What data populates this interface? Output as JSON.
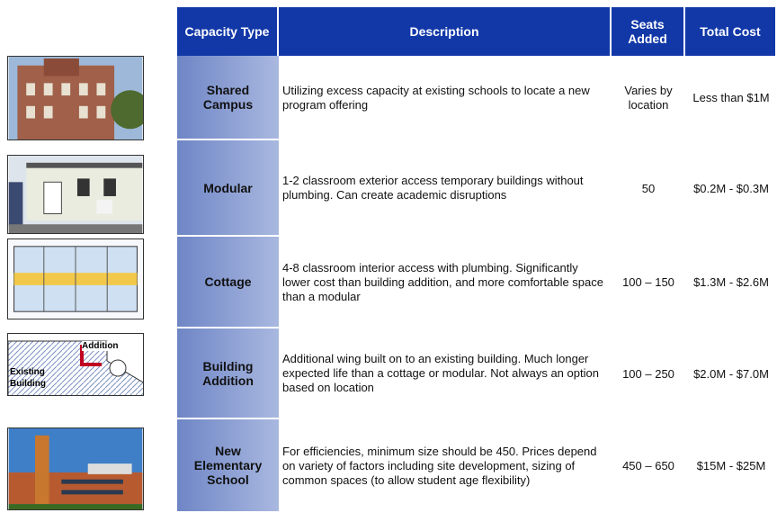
{
  "table": {
    "header": [
      "Capacity Type",
      "Description",
      "Seats Added",
      "Total Cost"
    ],
    "rows": [
      [
        "Shared Campus",
        "Utilizing excess capacity at existing schools to locate a new program offering",
        "Varies by location",
        "Less than $1M"
      ],
      [
        "Modular",
        "1-2 classroom exterior access temporary buildings without plumbing. Can create academic disruptions",
        "50",
        "$0.2M - $0.3M"
      ],
      [
        "Cottage",
        "4-8 classroom interior access with plumbing. Significantly lower cost than building addition, and more comfortable space than a modular",
        "100 – 150",
        "$1.3M - $2.6M"
      ],
      [
        "Building Addition",
        "Additional wing built on to an existing building. Much longer expected life than a cottage or modular. Not always an option based on location",
        "100 – 250",
        "$2.0M - $7.0M"
      ],
      [
        "New Elementary School",
        "For efficiencies, minimum size should be 450. Prices depend on variety of factors including site development, sizing of common spaces (to allow student age flexibility)",
        "450 – 650",
        "$15M - $25M"
      ]
    ]
  },
  "addition_diagram": {
    "labels": [
      "Addition",
      "Existing Building"
    ]
  }
}
